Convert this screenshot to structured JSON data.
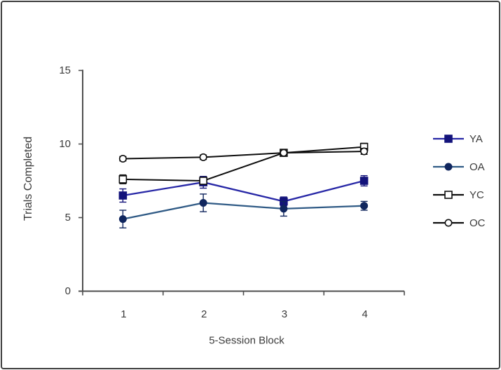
{
  "chart_data": {
    "type": "line",
    "title": "",
    "xlabel": "5-Session Block",
    "ylabel": "Trials Completed",
    "categories": [
      "1",
      "2",
      "3",
      "4"
    ],
    "ylim": [
      0,
      15
    ],
    "yticks": [
      0,
      5,
      10,
      15
    ],
    "grid": false,
    "legend_position": "right",
    "legend_order": [
      "YA",
      "OA",
      "YC",
      "OC"
    ],
    "series": [
      {
        "name": "YA",
        "values": [
          6.5,
          7.4,
          6.1,
          7.5
        ],
        "errors": [
          0.45,
          0.4,
          0.3,
          0.35
        ],
        "marker": "square",
        "fill": "filled",
        "line_color": "#2727a6",
        "marker_color": "#13137b"
      },
      {
        "name": "OA",
        "values": [
          4.9,
          6.0,
          5.6,
          5.8
        ],
        "errors": [
          0.6,
          0.6,
          0.5,
          0.3
        ],
        "marker": "circle",
        "fill": "filled",
        "line_color": "#2f5a85",
        "marker_color": "#10265e"
      },
      {
        "name": "YC",
        "values": [
          7.6,
          7.5,
          9.4,
          9.8
        ],
        "errors": [
          0.3,
          0.2,
          0.15,
          0.25
        ],
        "marker": "square",
        "fill": "open",
        "line_color": "#0d0d0d",
        "marker_color": "#ffffff"
      },
      {
        "name": "OC",
        "values": [
          9.0,
          9.1,
          9.4,
          9.5
        ],
        "errors": [
          0.15,
          0.15,
          0.15,
          0.2
        ],
        "marker": "circle",
        "fill": "open",
        "line_color": "#0d0d0d",
        "marker_color": "#ffffff"
      }
    ]
  },
  "colors": {
    "background": "#ffffff",
    "border": "#3f3f3f",
    "axis": "#4f4f4f",
    "text": "#3b3b3b"
  }
}
